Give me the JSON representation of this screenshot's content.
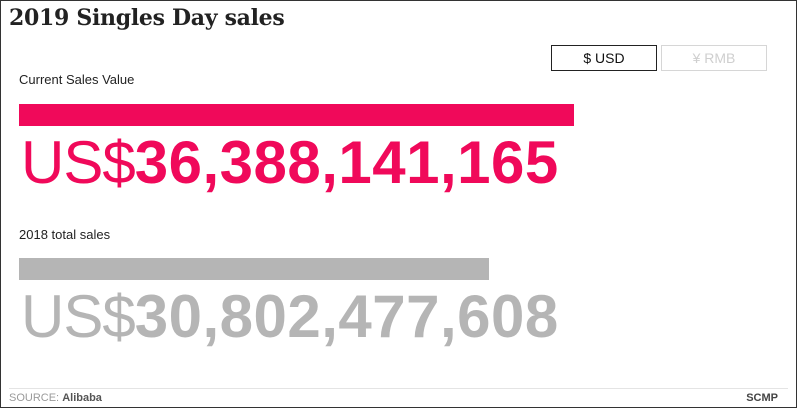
{
  "title": "2019 Singles Day sales",
  "currency_toggle": {
    "usd_label": "$ USD",
    "rmb_label": "¥ RMB",
    "selected": "USD"
  },
  "current": {
    "label": "Current Sales Value",
    "prefix": "US$",
    "amount": "36,388,141,165",
    "bar_fraction": 0.98,
    "color": "#f0095a"
  },
  "previous": {
    "label": "2018 total sales",
    "prefix": "US$",
    "amount": "30,802,477,608",
    "bar_fraction": 0.83,
    "color": "#b5b5b5"
  },
  "footer": {
    "source_label": "SOURCE:",
    "source_name": "Alibaba",
    "brand": "SCMP"
  }
}
